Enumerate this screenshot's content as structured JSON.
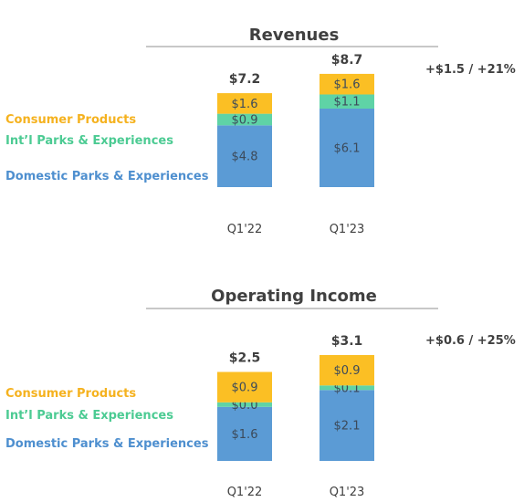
{
  "colors": {
    "consumer": "#fbbf24",
    "intl": "#5fd3a6",
    "domestic": "#5b9bd5",
    "consumer_label": "#f5b21f",
    "intl_label": "#4ccb93",
    "domestic_label": "#4e8fcf",
    "text_dark": "#404040",
    "text_seg": "#3c4a5a",
    "rule": "#a6a6a6"
  },
  "chart_data": [
    {
      "type": "bar",
      "stacked": true,
      "title": "Revenues",
      "categories": [
        "Q1'22",
        "Q1'23"
      ],
      "series": [
        {
          "name": "Domestic Parks & Experiences",
          "values": [
            4.8,
            6.1
          ],
          "labels": [
            "$4.8",
            "$6.1"
          ]
        },
        {
          "name": "Int’l Parks & Experiences",
          "values": [
            0.9,
            1.1
          ],
          "labels": [
            "$0.9",
            "$1.1"
          ]
        },
        {
          "name": "Consumer Products",
          "values": [
            1.6,
            1.6
          ],
          "labels": [
            "$1.6",
            "$1.6"
          ]
        }
      ],
      "totals": [
        "$7.2",
        "$8.7"
      ],
      "change": "+$1.5 / +21%"
    },
    {
      "type": "bar",
      "stacked": true,
      "title": "Operating Income",
      "categories": [
        "Q1'22",
        "Q1'23"
      ],
      "series": [
        {
          "name": "Domestic Parks & Experiences",
          "values": [
            1.6,
            2.1
          ],
          "labels": [
            "$1.6",
            "$2.1"
          ]
        },
        {
          "name": "Int’l Parks & Experiences",
          "values": [
            0.0,
            0.1
          ],
          "labels": [
            "$0.0",
            "$0.1"
          ]
        },
        {
          "name": "Consumer Products",
          "values": [
            0.9,
            0.9
          ],
          "labels": [
            "$0.9",
            "$0.9"
          ]
        }
      ],
      "totals": [
        "$2.5",
        "$3.1"
      ],
      "change": "+$0.6 / +25%"
    }
  ]
}
